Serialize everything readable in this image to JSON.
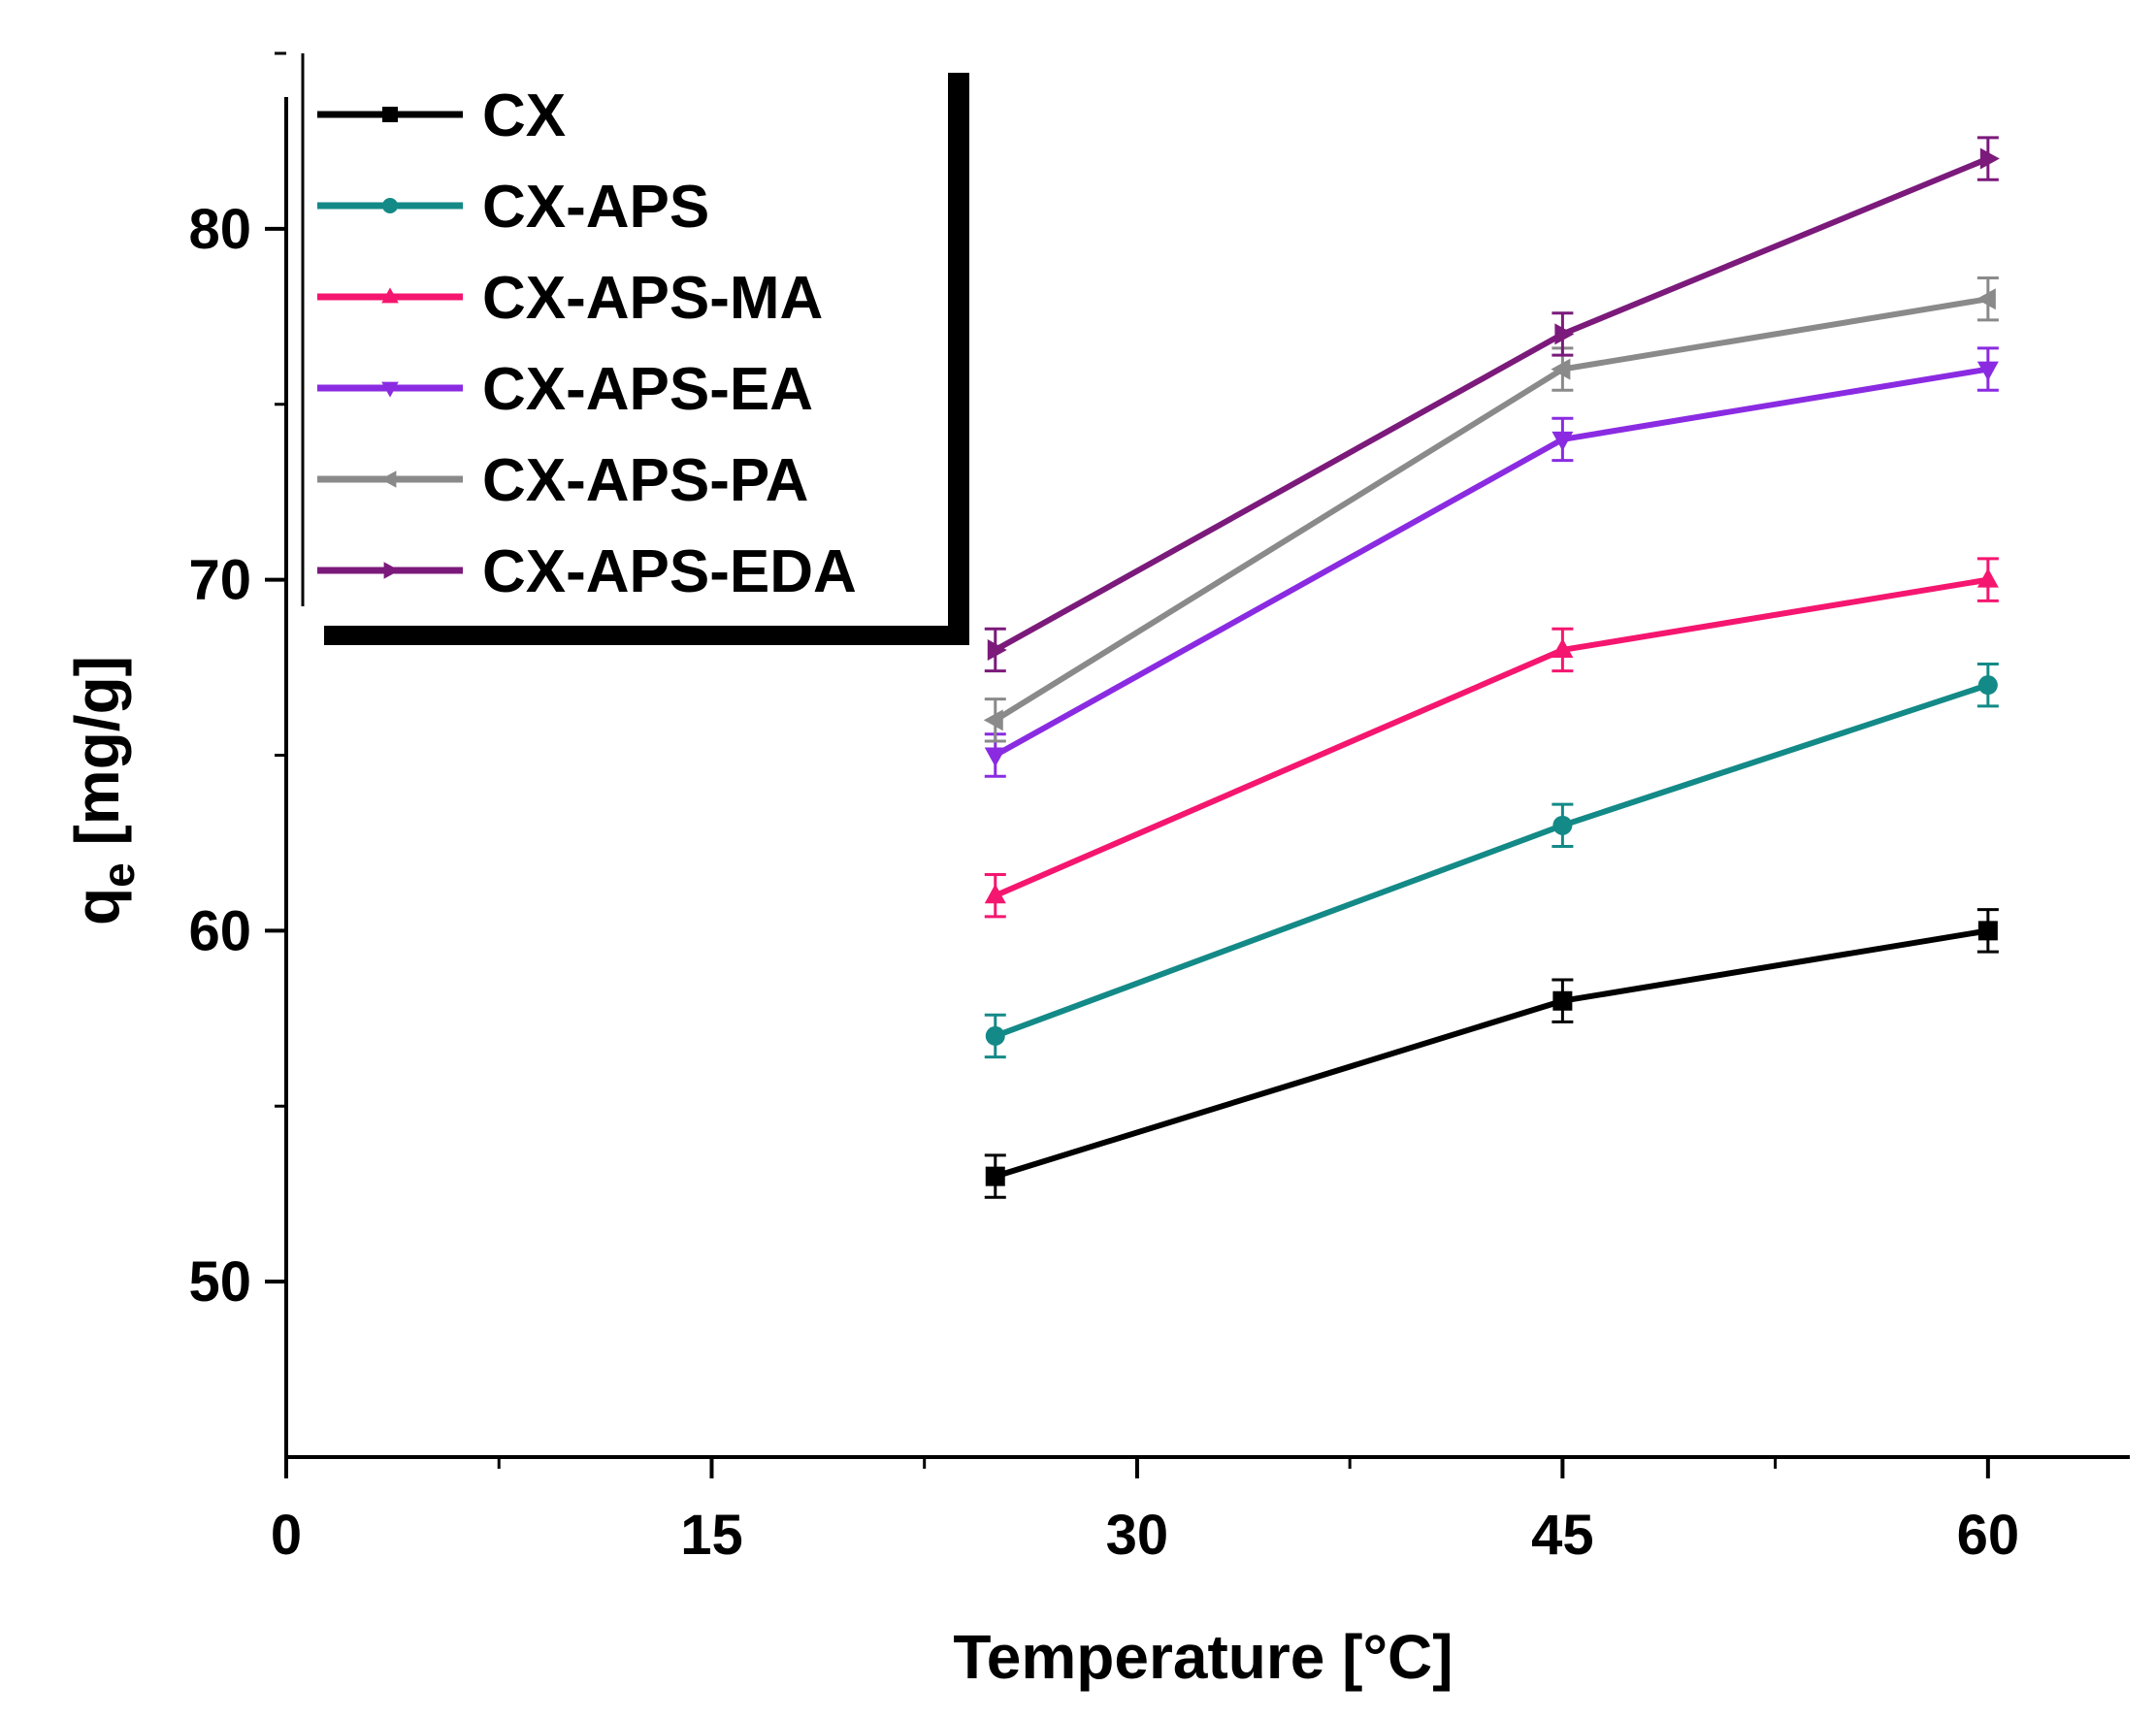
{
  "chart_data": {
    "type": "line",
    "title": "",
    "xlabel": "Temperature [°C]",
    "ylabel_main": "q",
    "ylabel_sub": "e",
    "ylabel_suffix": " [mg/g]",
    "xlim": [
      0,
      65
    ],
    "ylim": [
      45,
      85
    ],
    "x_ticks": [
      0,
      15,
      30,
      45,
      60
    ],
    "x_tick_labels": [
      "0",
      "15",
      "30",
      "45",
      "60"
    ],
    "x_minor_ticks": [
      7.5,
      22.5,
      37.5,
      52.5
    ],
    "y_ticks": [
      50,
      60,
      70,
      80
    ],
    "y_tick_labels": [
      "50",
      "60",
      "70",
      "80"
    ],
    "y_minor_ticks": [
      55,
      65,
      75,
      85
    ],
    "x": [
      25,
      45,
      60
    ],
    "legend_position": "top-left",
    "series": [
      {
        "name": "CX",
        "color": "#000000",
        "marker": "square",
        "values": [
          53,
          58,
          60
        ],
        "errors": [
          0.6,
          0.6,
          0.6
        ]
      },
      {
        "name": "CX-APS",
        "color": "#138a87",
        "marker": "circle",
        "values": [
          57,
          63,
          67
        ],
        "errors": [
          0.6,
          0.6,
          0.6
        ]
      },
      {
        "name": "CX-APS-MA",
        "color": "#f5166f",
        "marker": "triangle-up",
        "values": [
          61,
          68,
          70
        ],
        "errors": [
          0.6,
          0.6,
          0.6
        ]
      },
      {
        "name": "CX-APS-EA",
        "color": "#8a2be2",
        "marker": "triangle-down",
        "values": [
          65,
          74,
          76
        ],
        "errors": [
          0.6,
          0.6,
          0.6
        ]
      },
      {
        "name": "CX-APS-PA",
        "color": "#8a8a8a",
        "marker": "triangle-left",
        "values": [
          66,
          76,
          78
        ],
        "errors": [
          0.6,
          0.6,
          0.6
        ]
      },
      {
        "name": "CX-APS-EDA",
        "color": "#7b1a7b",
        "marker": "triangle-right",
        "values": [
          68,
          77,
          82
        ],
        "errors": [
          0.6,
          0.6,
          0.6
        ]
      }
    ]
  }
}
